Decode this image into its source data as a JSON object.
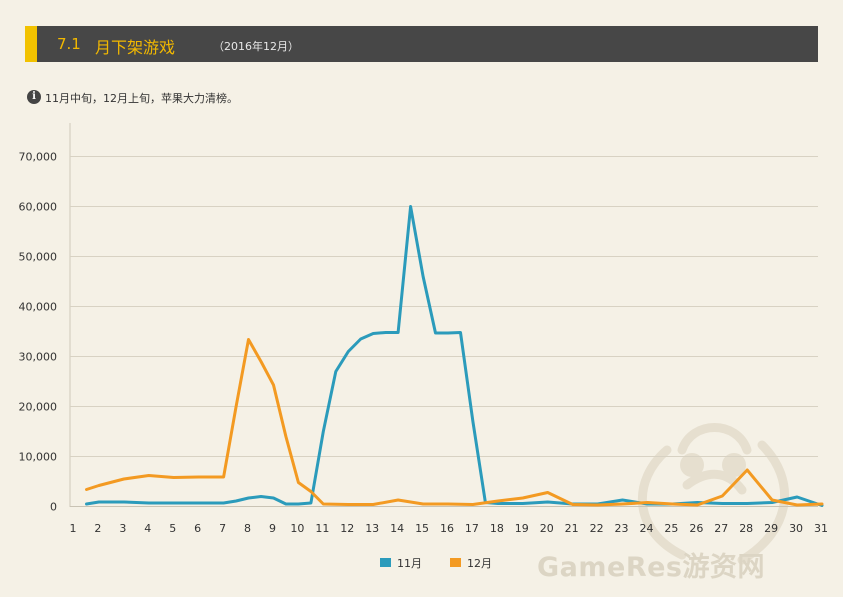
{
  "header": {
    "number": "7.1",
    "title": "月下架游戏",
    "subtitle": "（2016年12月）",
    "accent_color": "#f2c200",
    "bar_color": "#474747"
  },
  "note": {
    "icon": "info-icon",
    "icon_text": "i",
    "text": "11月中旬，12月上旬，苹果大力清榜。"
  },
  "watermark": {
    "text": "GameRes游资网"
  },
  "chart_data": {
    "type": "line",
    "title": "",
    "xlabel": "",
    "ylabel": "",
    "categories": [
      "1",
      "2",
      "3",
      "4",
      "5",
      "6",
      "7",
      "8",
      "9",
      "10",
      "11",
      "12",
      "13",
      "14",
      "15",
      "16",
      "17",
      "18",
      "19",
      "20",
      "21",
      "22",
      "23",
      "24",
      "25",
      "26",
      "27",
      "28",
      "29",
      "30",
      "31"
    ],
    "y_ticks": [
      "0",
      "10,000",
      "20,000",
      "30,000",
      "40,000",
      "50,000",
      "60,000",
      "70,000"
    ],
    "ylim": [
      0,
      70000
    ],
    "grid": true,
    "legend_position": "bottom",
    "series": [
      {
        "name": "11月",
        "color": "#2b9bbb",
        "x": [
          1.5,
          2,
          3,
          4,
          5,
          6,
          7,
          7.5,
          8,
          8.5,
          9,
          9.5,
          10,
          10.5,
          11,
          11.5,
          12,
          12.5,
          13,
          13.5,
          14,
          14.5,
          15,
          15.5,
          16,
          16.5,
          17,
          17.5,
          18,
          19,
          20,
          21,
          22,
          23,
          24,
          25,
          26,
          27,
          28,
          29,
          30,
          31
        ],
        "values": [
          500,
          900,
          900,
          700,
          700,
          700,
          700,
          1100,
          1700,
          2000,
          1700,
          500,
          500,
          700,
          15000,
          27000,
          31000,
          33500,
          34600,
          34800,
          34800,
          60000,
          46000,
          34700,
          34700,
          34800,
          17000,
          800,
          600,
          600,
          900,
          500,
          500,
          1300,
          500,
          500,
          800,
          600,
          600,
          800,
          1900,
          200
        ]
      },
      {
        "name": "12月",
        "color": "#f39a22",
        "x": [
          1.5,
          2,
          3,
          4,
          5,
          6,
          7,
          7.5,
          8,
          8.5,
          9,
          9.5,
          10,
          10.5,
          11,
          12,
          13,
          14,
          15,
          16,
          17,
          18,
          19,
          20,
          21,
          22,
          23,
          24,
          25,
          26,
          27,
          28,
          29,
          30,
          31
        ],
        "values": [
          3400,
          4200,
          5500,
          6200,
          5800,
          5900,
          5900,
          20000,
          33400,
          29000,
          24300,
          14000,
          4800,
          3000,
          500,
          400,
          400,
          1300,
          500,
          500,
          400,
          1100,
          1700,
          2800,
          400,
          300,
          500,
          800,
          500,
          300,
          2100,
          7300,
          1300,
          300,
          500
        ]
      }
    ]
  }
}
